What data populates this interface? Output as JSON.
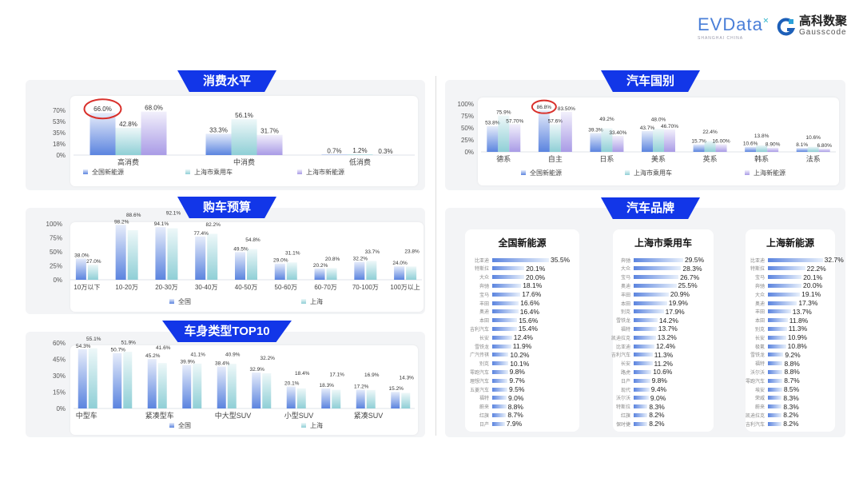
{
  "logos": {
    "evdata": "EVData",
    "evdata_sub": "SHANGHAI CHINA",
    "gauss_cn": "高科数聚",
    "gauss_en": "Gausscode"
  },
  "colors": {
    "series1": "#5b84df",
    "series2": "#8fcfd6",
    "series3": "#a99be6",
    "badge": "#1236e8",
    "highlight": "#d9302b"
  },
  "chart_data": [
    {
      "id": "consumption",
      "type": "bar",
      "title": "消费水平",
      "categories": [
        "高消费",
        "中消费",
        "低消费"
      ],
      "series": [
        {
          "name": "全国新能源",
          "values": [
            66.0,
            33.3,
            0.7
          ]
        },
        {
          "name": "上海市乘用车",
          "values": [
            42.8,
            56.1,
            1.2
          ]
        },
        {
          "name": "上海市新能源",
          "values": [
            68.0,
            31.7,
            0.3
          ]
        }
      ],
      "value_labels": [
        [
          "66.0%",
          "33.3%",
          "0.7%"
        ],
        [
          "42.8%",
          "56.1%",
          "1.2%"
        ],
        [
          "68.0%",
          "31.7%",
          "0.3%"
        ]
      ],
      "yticks": [
        "0%",
        "18%",
        "35%",
        "53%",
        "70%"
      ],
      "ylim": [
        0,
        70
      ],
      "highlight": {
        "series": 0,
        "category": 0
      },
      "legend": "bottom",
      "grid": false
    },
    {
      "id": "budget",
      "type": "bar",
      "title": "购车预算",
      "categories": [
        "10万以下",
        "10-20万",
        "20-30万",
        "30-40万",
        "40-50万",
        "50-60万",
        "60-70万",
        "70-100万",
        "100万以上"
      ],
      "series": [
        {
          "name": "全国",
          "values": [
            38.0,
            98.2,
            94.1,
            77.4,
            49.5,
            29.0,
            20.2,
            32.2,
            24.0
          ]
        },
        {
          "name": "上海",
          "values": [
            27.0,
            88.6,
            92.1,
            82.2,
            54.8,
            31.1,
            20.8,
            33.7,
            23.8
          ]
        }
      ],
      "value_labels": [
        [
          "38.0%",
          "98.2%",
          "94.1%",
          "77.4%",
          "49.5%",
          "29.0%",
          "20.2%",
          "32.2%",
          "24.0%"
        ],
        [
          "27.0%",
          "88.6%",
          "92.1%",
          "82.2%",
          "54.8%",
          "31.1%",
          "20.8%",
          "33.7%",
          "23.8%"
        ]
      ],
      "yticks": [
        "0%",
        "25%",
        "50%",
        "75%",
        "100%"
      ],
      "ylim": [
        0,
        100
      ],
      "legend": "bottom",
      "grid": false
    },
    {
      "id": "bodytype",
      "type": "bar",
      "title": "车身类型TOP10",
      "categories": [
        "中型车",
        "",
        "紧凑型车",
        "",
        "中大型SUV",
        "",
        "小型SUV",
        "",
        "紧凑SUV",
        ""
      ],
      "series": [
        {
          "name": "全国",
          "values": [
            54.3,
            50.7,
            45.2,
            39.9,
            38.4,
            32.9,
            20.1,
            18.3,
            17.2,
            15.2
          ]
        },
        {
          "name": "上海",
          "values": [
            55.1,
            51.9,
            41.6,
            41.1,
            40.9,
            32.2,
            18.4,
            17.1,
            16.9,
            14.3
          ]
        }
      ],
      "value_labels": [
        [
          "54.3%",
          "50.7%",
          "45.2%",
          "39.9%",
          "38.4%",
          "32.9%",
          "20.1%",
          "18.3%",
          "17.2%",
          "15.2%"
        ],
        [
          "55.1%",
          "51.9%",
          "41.6%",
          "41.1%",
          "40.9%",
          "32.2%",
          "18.4%",
          "17.1%",
          "16.9%",
          "14.3%"
        ]
      ],
      "yticks": [
        "0%",
        "15%",
        "30%",
        "45%",
        "60%"
      ],
      "ylim": [
        0,
        60
      ],
      "legend": "bottom",
      "grid": false
    },
    {
      "id": "origin",
      "type": "bar",
      "title": "汽车国别",
      "categories": [
        "德系",
        "自主",
        "日系",
        "美系",
        "英系",
        "韩系",
        "法系"
      ],
      "series": [
        {
          "name": "全国新能源",
          "values": [
            53.8,
            86.8,
            39.3,
            43.7,
            15.7,
            10.6,
            8.1
          ]
        },
        {
          "name": "上海市乘用车",
          "values": [
            75.9,
            57.6,
            49.2,
            48.0,
            22.4,
            13.8,
            10.6
          ]
        },
        {
          "name": "上海新能源",
          "values": [
            57.7,
            83.5,
            33.4,
            46.7,
            16.0,
            8.9,
            6.8
          ]
        }
      ],
      "value_labels": [
        [
          "53.8%",
          "86.8%",
          "39.3%",
          "43.7%",
          "15.7%",
          "10.6%",
          "8.1%"
        ],
        [
          "75.9%",
          "57.6%",
          "49.2%",
          "48.0%",
          "22.4%",
          "13.8%",
          "10.6%"
        ],
        [
          "57.70%",
          "83.50%",
          "33.40%",
          "46.70%",
          "16.00%",
          "8.90%",
          "6.80%"
        ]
      ],
      "yticks": [
        "0%",
        "25%",
        "50%",
        "75%",
        "100%"
      ],
      "ylim": [
        0,
        100
      ],
      "highlight": {
        "series": 0,
        "category": 1
      },
      "legend": "bottom",
      "grid": false
    },
    {
      "id": "brands",
      "type": "bar",
      "orientation": "horizontal",
      "title": "汽车品牌",
      "groups": [
        {
          "name": "全国新能源",
          "labels": [
            "比亚迪",
            "特斯拉",
            "大众",
            "奔驰",
            "宝马",
            "丰田",
            "奥迪",
            "本田",
            "吉利汽车",
            "长安",
            "雪铁龙",
            "广汽传祺",
            "别克",
            "零跑汽车",
            "理想汽车",
            "五菱汽车",
            "福特",
            "蔚来",
            "红旗",
            "日产"
          ],
          "values": [
            35.5,
            20.1,
            20.0,
            18.1,
            17.6,
            16.6,
            16.4,
            15.6,
            15.4,
            12.4,
            11.9,
            10.2,
            10.1,
            9.8,
            9.7,
            9.5,
            9.0,
            8.8,
            8.7,
            7.9
          ]
        },
        {
          "name": "上海市乘用车",
          "labels": [
            "奔驰",
            "大众",
            "宝马",
            "奥迪",
            "丰田",
            "本田",
            "别克",
            "雪铁龙",
            "福特",
            "凯迪拉克",
            "比亚迪",
            "吉利汽车",
            "长安",
            "路虎",
            "日产",
            "现代",
            "沃尔沃",
            "特斯拉",
            "红旗",
            "保时捷"
          ],
          "values": [
            29.5,
            28.3,
            26.7,
            25.5,
            20.9,
            19.9,
            17.9,
            14.2,
            13.7,
            13.2,
            12.4,
            11.3,
            11.2,
            10.6,
            9.8,
            9.4,
            9.0,
            8.3,
            8.2,
            8.2
          ]
        },
        {
          "name": "上海新能源",
          "labels": [
            "比亚迪",
            "特斯拉",
            "宝马",
            "奔驰",
            "大众",
            "奥迪",
            "丰田",
            "本田",
            "别克",
            "长安",
            "极氪",
            "雪铁龙",
            "福特",
            "沃尔沃",
            "零跑汽车",
            "埃安",
            "荣威",
            "蔚来",
            "凯迪拉克",
            "吉利汽车"
          ],
          "values": [
            32.7,
            22.2,
            20.1,
            20.0,
            19.1,
            17.3,
            13.7,
            11.8,
            11.3,
            10.9,
            10.8,
            9.2,
            8.8,
            8.8,
            8.7,
            8.5,
            8.3,
            8.3,
            8.2,
            8.2
          ]
        }
      ]
    }
  ]
}
